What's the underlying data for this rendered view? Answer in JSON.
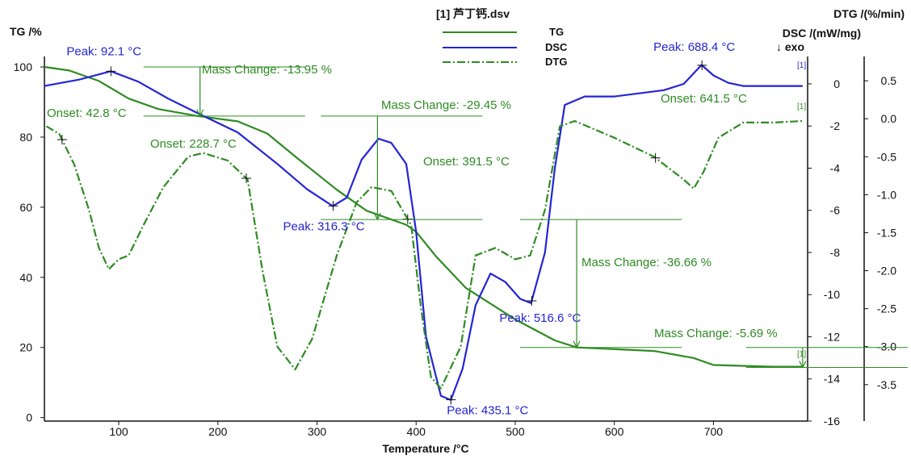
{
  "chart_data": {
    "type": "line",
    "title": "[1] 芦丁钙.dsv",
    "xlabel": "Temperature /°C",
    "xlim": [
      25,
      795
    ],
    "x_ticks": [
      100,
      200,
      300,
      400,
      500,
      600,
      700
    ],
    "axes": {
      "tg": {
        "label": "TG /%",
        "ylim": [
          -1,
          103
        ],
        "ticks": [
          0,
          20,
          40,
          60,
          80,
          100
        ]
      },
      "dsc": {
        "label": "DSC /(mW/mg)",
        "exo_label": "↓ exo",
        "ylim": [
          -16,
          1.3
        ],
        "ticks": [
          0,
          -2,
          -4,
          -6,
          -8,
          -10,
          -12,
          -14,
          -16
        ]
      },
      "dtg": {
        "label": "DTG /(%/min)",
        "ylim": [
          -3.98,
          0.82
        ],
        "ticks": [
          0.5,
          0.0,
          -0.5,
          -1.0,
          -1.5,
          -2.0,
          -2.5,
          -3.0,
          -3.5
        ]
      }
    },
    "legend": {
      "placement": "top-center",
      "entries": [
        {
          "name": "TG",
          "color": "#2e8b22",
          "style": "solid"
        },
        {
          "name": "DSC",
          "color": "#2424d6",
          "style": "solid"
        },
        {
          "name": "DTG",
          "color": "#2e8b22",
          "style": "dash-dot"
        }
      ]
    },
    "series": [
      {
        "name": "TG",
        "axis": "tg",
        "color": "#2e8b22",
        "style": "solid",
        "points": [
          [
            25,
            100
          ],
          [
            50,
            99
          ],
          [
            80,
            96
          ],
          [
            110,
            91
          ],
          [
            140,
            88
          ],
          [
            180,
            86
          ],
          [
            220,
            84.5
          ],
          [
            250,
            81
          ],
          [
            280,
            74
          ],
          [
            320,
            65
          ],
          [
            350,
            59
          ],
          [
            390,
            55
          ],
          [
            400,
            53
          ],
          [
            420,
            46
          ],
          [
            450,
            37
          ],
          [
            500,
            28
          ],
          [
            540,
            22
          ],
          [
            562,
            20
          ],
          [
            640,
            19
          ],
          [
            680,
            17
          ],
          [
            700,
            15
          ],
          [
            760,
            14.5
          ],
          [
            790,
            14.5
          ]
        ]
      },
      {
        "name": "DSC",
        "axis": "dsc",
        "color": "#2424d6",
        "style": "solid",
        "points": [
          [
            25,
            -0.1
          ],
          [
            60,
            0.2
          ],
          [
            92,
            0.6
          ],
          [
            120,
            0.1
          ],
          [
            150,
            -0.7
          ],
          [
            180,
            -1.4
          ],
          [
            220,
            -2.3
          ],
          [
            260,
            -3.8
          ],
          [
            290,
            -5.0
          ],
          [
            316,
            -5.8
          ],
          [
            330,
            -5.4
          ],
          [
            345,
            -3.6
          ],
          [
            362,
            -2.6
          ],
          [
            375,
            -2.8
          ],
          [
            390,
            -3.8
          ],
          [
            400,
            -7.0
          ],
          [
            410,
            -12.0
          ],
          [
            425,
            -14.8
          ],
          [
            435,
            -15.0
          ],
          [
            447,
            -13.5
          ],
          [
            460,
            -10.5
          ],
          [
            475,
            -9.0
          ],
          [
            490,
            -9.4
          ],
          [
            505,
            -10.2
          ],
          [
            516,
            -10.4
          ],
          [
            530,
            -8.0
          ],
          [
            540,
            -4.0
          ],
          [
            550,
            -1.0
          ],
          [
            570,
            -0.6
          ],
          [
            600,
            -0.6
          ],
          [
            650,
            -0.3
          ],
          [
            670,
            0.0
          ],
          [
            688,
            0.9
          ],
          [
            700,
            0.4
          ],
          [
            715,
            0.05
          ],
          [
            730,
            -0.1
          ],
          [
            790,
            -0.1
          ]
        ]
      },
      {
        "name": "DTG",
        "axis": "dtg",
        "color": "#2e8b22",
        "style": "dash-dot",
        "points": [
          [
            27,
            -0.1
          ],
          [
            40,
            -0.2
          ],
          [
            55,
            -0.6
          ],
          [
            70,
            -1.2
          ],
          [
            80,
            -1.7
          ],
          [
            90,
            -1.98
          ],
          [
            100,
            -1.85
          ],
          [
            110,
            -1.8
          ],
          [
            125,
            -1.4
          ],
          [
            145,
            -0.9
          ],
          [
            170,
            -0.5
          ],
          [
            185,
            -0.45
          ],
          [
            210,
            -0.55
          ],
          [
            230,
            -0.8
          ],
          [
            245,
            -2.0
          ],
          [
            260,
            -3.0
          ],
          [
            278,
            -3.3
          ],
          [
            295,
            -2.9
          ],
          [
            320,
            -1.8
          ],
          [
            340,
            -1.1
          ],
          [
            355,
            -0.9
          ],
          [
            375,
            -0.95
          ],
          [
            395,
            -1.4
          ],
          [
            405,
            -2.5
          ],
          [
            415,
            -3.4
          ],
          [
            425,
            -3.55
          ],
          [
            445,
            -3.0
          ],
          [
            460,
            -1.8
          ],
          [
            480,
            -1.7
          ],
          [
            500,
            -1.85
          ],
          [
            515,
            -1.8
          ],
          [
            530,
            -1.2
          ],
          [
            545,
            -0.1
          ],
          [
            560,
            -0.03
          ],
          [
            600,
            -0.25
          ],
          [
            640,
            -0.5
          ],
          [
            670,
            -0.8
          ],
          [
            680,
            -0.92
          ],
          [
            690,
            -0.7
          ],
          [
            705,
            -0.25
          ],
          [
            730,
            -0.05
          ],
          [
            760,
            -0.05
          ],
          [
            790,
            -0.03
          ]
        ]
      }
    ],
    "annotations": {
      "peaks": [
        {
          "label": "Peak: 92.1 °C",
          "x": 92.1,
          "series": "DSC"
        },
        {
          "label": "Peak: 316.3 °C",
          "x": 316.3,
          "series": "DSC"
        },
        {
          "label": "Peak: 435.1 °C",
          "x": 435.1,
          "series": "DSC"
        },
        {
          "label": "Peak: 516.6 °C",
          "x": 516.6,
          "series": "DSC"
        },
        {
          "label": "Peak: 688.4 °C",
          "x": 688.4,
          "series": "DSC"
        }
      ],
      "onsets": [
        {
          "label": "Onset: 42.8 °C",
          "x": 42.8
        },
        {
          "label": "Onset: 228.7 °C",
          "x": 228.7
        },
        {
          "label": "Onset: 391.5 °C",
          "x": 391.5
        },
        {
          "label": "Onset: 641.5 °C",
          "x": 641.5
        }
      ],
      "mass_changes": [
        {
          "label": "Mass Change: -13.95 %",
          "value": -13.95,
          "from": 100,
          "to": 86,
          "x": 182
        },
        {
          "label": "Mass Change: -29.45 %",
          "value": -29.45,
          "from": 86,
          "to": 56.5,
          "x": 361
        },
        {
          "label": "Mass Change: -36.66 %",
          "value": -36.66,
          "from": 56.5,
          "to": 20,
          "x": 562
        },
        {
          "label": "Mass Change: -5.69 %",
          "value": -5.69,
          "from": 20,
          "to": 14.3,
          "x": 790
        }
      ],
      "curve_tags": [
        "[1]",
        "[1]",
        "[1]"
      ]
    }
  }
}
